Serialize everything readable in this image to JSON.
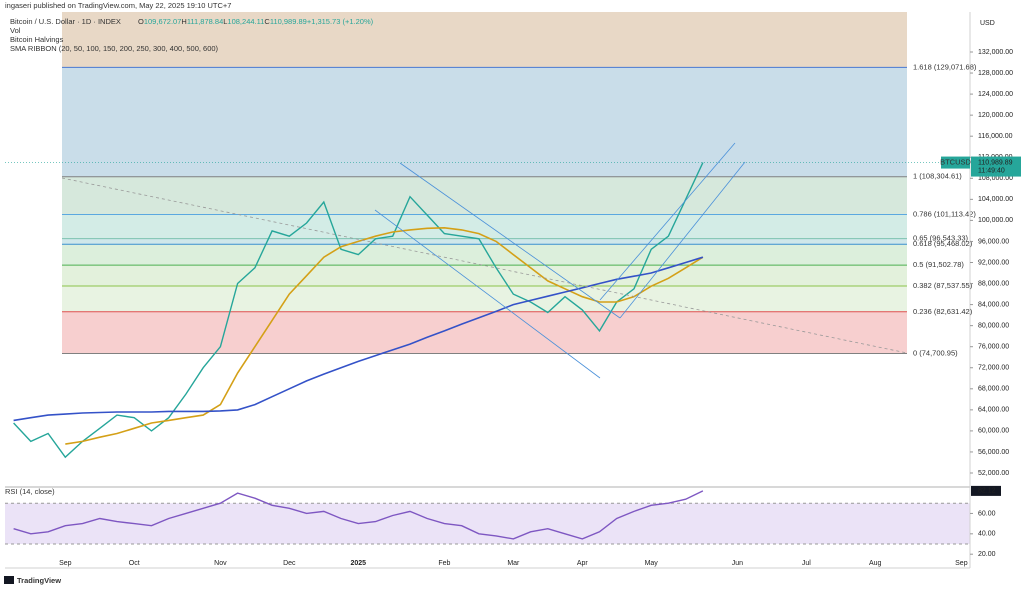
{
  "header": {
    "publisher": "ingaseri published on TradingView.com, May 22, 2025 19:10 UTC+7",
    "ohlc": [
      {
        "key": "O",
        "value": "109,672.07"
      },
      {
        "key": "H",
        "value": "111,878.84"
      },
      {
        "key": "L",
        "value": "108,244.11"
      },
      {
        "key": "C",
        "value": "110,989.89"
      },
      {
        "key": "",
        "value": "+1,315.73 (+1.20%)"
      }
    ],
    "indicators": [
      "Vol",
      "Bitcoin Halvings",
      "SMA RIBBON (20, 50, 100, 150, 200, 250, 300, 400, 500, 600)"
    ],
    "currency": "USD"
  },
  "footer": "TradingView",
  "chart_data": [
    {
      "type": "line",
      "grid": false,
      "categories": [
        null,
        null,
        null,
        "Sep",
        null,
        null,
        null,
        "Oct",
        null,
        null,
        null,
        null,
        "Nov",
        null,
        null,
        null,
        "Dec",
        null,
        null,
        null,
        "2025",
        null,
        null,
        null,
        null,
        "Feb",
        null,
        null,
        null,
        "Mar",
        null,
        null,
        null,
        "Apr",
        null,
        null,
        null,
        "May",
        null,
        null,
        null,
        null,
        "Jun",
        null,
        null,
        null,
        "Jul",
        null,
        null,
        null,
        "Aug",
        null,
        null,
        null,
        null,
        "Sep"
      ],
      "series": [
        {
          "name": "Bitcoin / U.S. Dollar · 1D · INDEX",
          "color": "#26a69a",
          "values": [
            61500,
            58000,
            59500,
            55000,
            58000,
            60500,
            63000,
            62500,
            60000,
            62500,
            67000,
            72000,
            76000,
            88000,
            91000,
            98000,
            97000,
            99500,
            103500,
            94500,
            93500,
            96500,
            97000,
            104500,
            101000,
            97500,
            97000,
            96500,
            91000,
            86000,
            84500,
            82500,
            85500,
            83000,
            79000,
            84500,
            87000,
            94500,
            97000,
            104000,
            110989.89,
            null,
            null,
            null,
            null,
            null,
            null,
            null,
            null,
            null,
            null,
            null,
            null,
            null,
            null,
            null
          ]
        },
        {
          "color": "#d4a017",
          "values": [
            null,
            null,
            null,
            57500,
            58000,
            58800,
            59500,
            60500,
            61500,
            62000,
            62500,
            63000,
            65000,
            71000,
            76000,
            81000,
            86000,
            89500,
            93000,
            95000,
            96000,
            97000,
            97800,
            98200,
            98500,
            98600,
            98200,
            97500,
            96000,
            93500,
            91000,
            88500,
            87000,
            85500,
            84500,
            84500,
            85500,
            87500,
            89000,
            91000,
            93000,
            null,
            null,
            null,
            null,
            null,
            null,
            null,
            null,
            null,
            null,
            null,
            null,
            null,
            null,
            null
          ]
        },
        {
          "color": "#3452c8",
          "values": [
            62000,
            62500,
            63000,
            63200,
            63400,
            63500,
            63600,
            63600,
            63600,
            63700,
            63700,
            63700,
            63800,
            64000,
            65000,
            66500,
            68000,
            69500,
            70800,
            72000,
            73200,
            74300,
            75400,
            76500,
            77800,
            79000,
            80300,
            81500,
            82700,
            84000,
            84800,
            85600,
            86400,
            87200,
            88000,
            88800,
            89400,
            90000,
            91000,
            92000,
            93000,
            null,
            null,
            null,
            null,
            null,
            null,
            null,
            null,
            null,
            null,
            null,
            null,
            null,
            null,
            null
          ]
        }
      ],
      "ylim": [
        49720,
        139600
      ],
      "yticks": [
        {
          "value": 52000,
          "label": "52,000.00"
        },
        {
          "value": 56000,
          "label": "56,000.00"
        },
        {
          "value": 60000,
          "label": "60,000.00"
        },
        {
          "value": 64000,
          "label": "64,000.00"
        },
        {
          "value": 68000,
          "label": "68,000.00"
        },
        {
          "value": 72000,
          "label": "72,000.00"
        },
        {
          "value": 76000,
          "label": "76,000.00"
        },
        {
          "value": 80000,
          "label": "80,000.00"
        },
        {
          "value": 84000,
          "label": "84,000.00"
        },
        {
          "value": 88000,
          "label": "88,000.00"
        },
        {
          "value": 92000,
          "label": "92,000.00"
        },
        {
          "value": 96000,
          "label": "96,000.00"
        },
        {
          "value": 100000,
          "label": "100,000.00"
        },
        {
          "value": 104000,
          "label": "104,000.00"
        },
        {
          "value": 108000,
          "label": "108,000.00"
        },
        {
          "value": 112000,
          "label": "112,000.00"
        },
        {
          "value": 116000,
          "label": "116,000.00"
        },
        {
          "value": 120000,
          "label": "120,000.00"
        },
        {
          "value": 124000,
          "label": "124,000.00"
        },
        {
          "value": 128000,
          "label": "128,000.00"
        },
        {
          "value": 132000,
          "label": "132,000.00"
        }
      ],
      "fib_levels": [
        {
          "value": 129071.68,
          "label": "1.618 (129,071.68)",
          "color": "#4a78d0",
          "fill": "#c9dde9"
        },
        {
          "value": 108304.61,
          "label": "1 (108,304.61)",
          "color": "#808080",
          "fill": "#d6e8dc"
        },
        {
          "value": 101113.42,
          "label": "0.786 (101,113.42)",
          "color": "#5ba8e0",
          "fill": "#d3ece6"
        },
        {
          "value": 96543.33,
          "label": "0.65 (96,543.33)",
          "color": "#7dc3b0",
          "fill": "#cfe7ea"
        },
        {
          "value": 95468.02,
          "label": "0.618 (95,468.02)",
          "color": "#3a8fd0",
          "fill": "#dcefdc"
        },
        {
          "value": 91502.78,
          "label": "0.5 (91,502.78)",
          "color": "#4caf50",
          "fill": "#e3f1dc"
        },
        {
          "value": 87537.55,
          "label": "0.382 (87,537.55)",
          "color": "#8bc34a",
          "fill": "#e8f3e2"
        },
        {
          "value": 82631.42,
          "label": "0.236 (82,631.42)",
          "color": "#e05050",
          "fill": "#f7cfcf"
        },
        {
          "value": 74700.95,
          "label": "0 (74,700.95)",
          "color": "#808080"
        }
      ],
      "last_price": {
        "symbol": "BTCUSD",
        "value": 110989.89,
        "label": "110,989.89",
        "countdown": "11:49:40",
        "color": "#26a69a"
      }
    },
    {
      "type": "line",
      "title": "RSI (14, close)",
      "series": [
        {
          "color": "#7e57c2",
          "values": [
            45,
            40,
            42,
            48,
            50,
            55,
            52,
            50,
            48,
            55,
            60,
            65,
            70,
            80,
            75,
            68,
            65,
            60,
            62,
            55,
            50,
            52,
            58,
            62,
            55,
            50,
            48,
            40,
            38,
            35,
            42,
            45,
            40,
            35,
            42,
            55,
            62,
            68,
            70,
            74,
            82.12,
            null,
            null,
            null,
            null,
            null,
            null,
            null,
            null,
            null,
            null,
            null,
            null,
            null,
            null,
            null
          ]
        }
      ],
      "ylim": [
        9.4,
        83
      ],
      "yticks": [
        {
          "value": 20,
          "label": "20.00"
        },
        {
          "value": 40,
          "label": "40.00"
        },
        {
          "value": 60,
          "label": "60.00"
        }
      ],
      "band": [
        30,
        70
      ],
      "band_color": "#ebe3f7"
    }
  ]
}
